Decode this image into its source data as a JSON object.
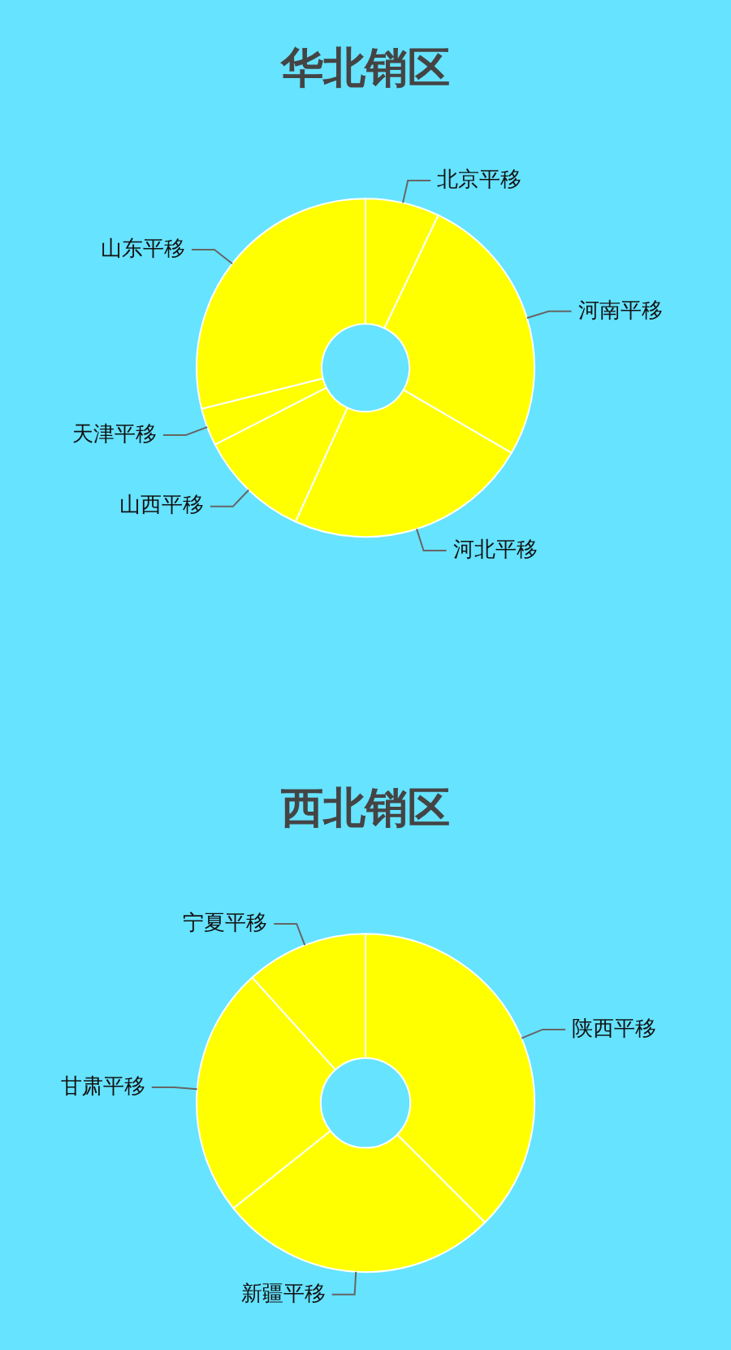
{
  "chart_data": [
    {
      "type": "donut",
      "title": "华北销区",
      "categories": [
        "北京平移",
        "河南平移",
        "河北平移",
        "山西平移",
        "天津平移",
        "山东平移"
      ],
      "values": [
        7.1,
        26.3,
        23.4,
        10.7,
        3.6,
        28.9
      ],
      "colors": [
        "#ffff00",
        "#ffff00",
        "#ffff00",
        "#ffff00",
        "#ffff00",
        "#ffff00"
      ]
    },
    {
      "type": "donut",
      "title": "西北销区",
      "categories": [
        "陕西平移",
        "新疆平移",
        "甘肃平移",
        "宁夏平移"
      ],
      "values": [
        37.5,
        26.8,
        24.0,
        11.7
      ],
      "colors": [
        "#ffff00",
        "#ffff00",
        "#ffff00",
        "#ffff00"
      ]
    }
  ]
}
